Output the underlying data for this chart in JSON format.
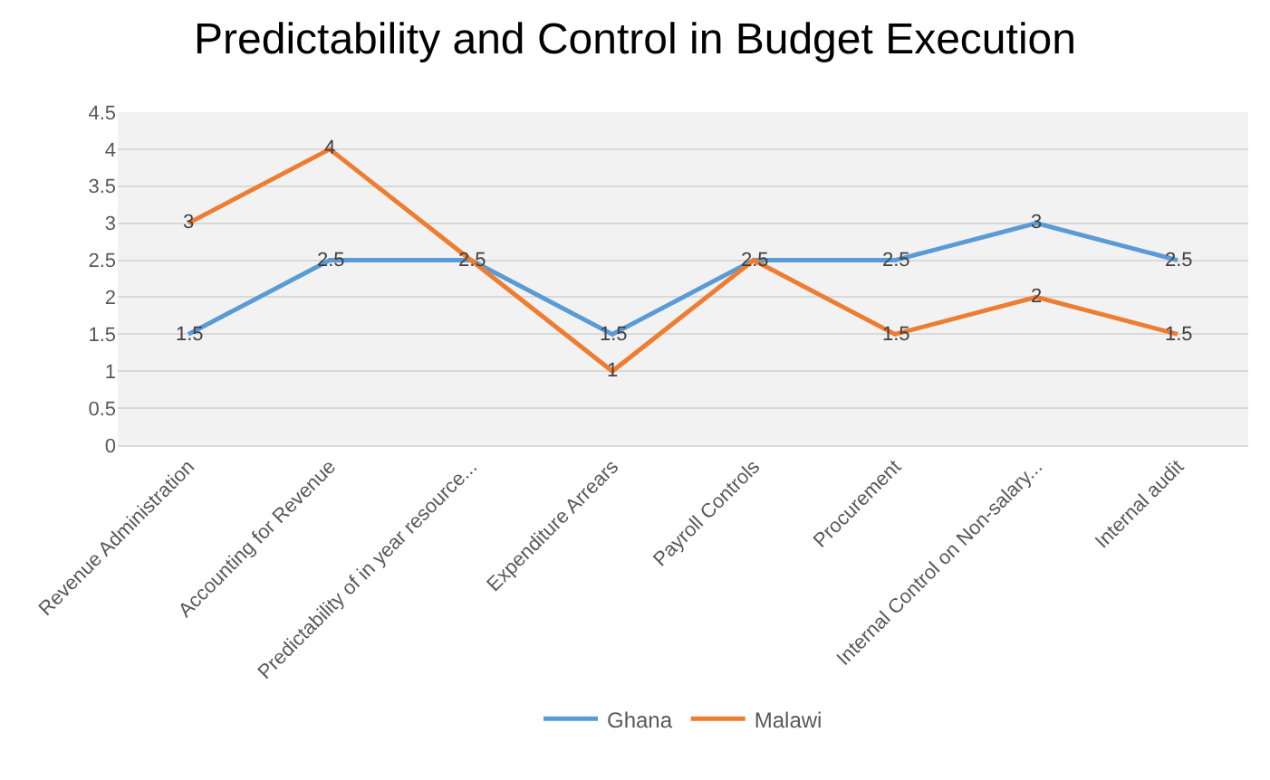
{
  "chart_data": {
    "type": "line",
    "title": "Predictability and Control in Budget Execution",
    "categories": [
      "Revenue Administration",
      "Accounting for Revenue",
      "Predictability of in year resource...",
      "Expenditure Arrears",
      "Payroll Controls",
      "Procurement",
      "Internal Control on Non-salary...",
      "Internal audit"
    ],
    "series": [
      {
        "name": "Ghana",
        "color": "#5b9bd5",
        "values": [
          1.5,
          2.5,
          2.5,
          1.5,
          2.5,
          2.5,
          3,
          2.5
        ]
      },
      {
        "name": "Malawi",
        "color": "#ed7d31",
        "values": [
          3,
          4,
          2.5,
          1,
          2.5,
          1.5,
          2,
          1.5
        ],
        "value_labels": [
          "3",
          "4",
          null,
          "1",
          null,
          "1.5",
          "2",
          "1.5"
        ]
      }
    ],
    "ylim": [
      0,
      4.5
    ],
    "yticks": [
      0,
      0.5,
      1,
      1.5,
      2,
      2.5,
      3,
      3.5,
      4,
      4.5
    ],
    "grid": "y",
    "legend": "bottom",
    "data_labels": true,
    "marker": "none",
    "line_style": "solid"
  }
}
